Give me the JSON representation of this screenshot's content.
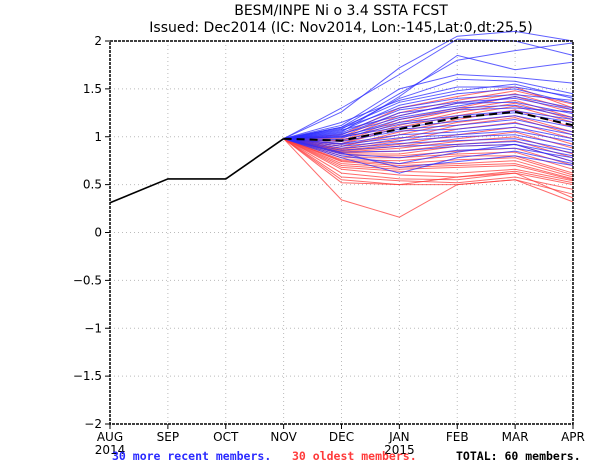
{
  "chart_data": {
    "type": "line",
    "title": "BESM/INPE Ni o 3.4 SSTA FCST",
    "subtitle": "Issued: Dec2014 (IC: Nov2014, Lon:-145,Lat:0,dt:25,5)",
    "xlabel": "",
    "ylabel": "",
    "x_ticks": [
      "AUG",
      "SEP",
      "OCT",
      "NOV",
      "DEC",
      "JAN",
      "FEB",
      "MAR",
      "APR"
    ],
    "x_year_labels": [
      {
        "index": 0,
        "label": "2014"
      },
      {
        "index": 5,
        "label": "2015"
      }
    ],
    "y_ticks": [
      "2",
      "1.5",
      "1",
      "0.5",
      "0",
      "−0.5",
      "−1",
      "−1.5",
      "−2"
    ],
    "y_tick_values": [
      2,
      1.5,
      1,
      0.5,
      0,
      -0.5,
      -1,
      -1.5,
      -2
    ],
    "ylim": [
      -2,
      2
    ],
    "grid": true,
    "observed": {
      "name": "observed",
      "color": "#000000",
      "x_index": [
        0,
        1,
        2,
        3
      ],
      "values": [
        0.31,
        0.56,
        0.56,
        0.98
      ]
    },
    "ensemble_mean": {
      "name": "ensemble mean",
      "color": "#000000",
      "style": "dashed",
      "x_index": [
        3,
        4,
        5,
        6,
        7,
        8
      ],
      "values": [
        0.98,
        0.96,
        1.08,
        1.2,
        1.26,
        1.12
      ]
    },
    "series_groups": [
      {
        "name": "30 more recent members",
        "color": "#2b2bff",
        "x_index": [
          3,
          4,
          5,
          6,
          7,
          8
        ],
        "members": [
          [
            0.98,
            1.26,
            1.72,
            2.05,
            2.1,
            2.0
          ],
          [
            0.98,
            1.3,
            1.65,
            2.02,
            2.0,
            1.85
          ],
          [
            0.98,
            1.1,
            1.45,
            1.8,
            1.9,
            1.98
          ],
          [
            0.98,
            1.05,
            1.42,
            1.85,
            1.7,
            1.78
          ],
          [
            0.98,
            1.12,
            1.5,
            1.65,
            1.62,
            1.56
          ],
          [
            0.98,
            1.08,
            1.4,
            1.6,
            1.58,
            1.45
          ],
          [
            0.98,
            1.15,
            1.38,
            1.52,
            1.52,
            1.42
          ],
          [
            0.98,
            1.1,
            1.36,
            1.48,
            1.55,
            1.4
          ],
          [
            0.98,
            1.06,
            1.33,
            1.45,
            1.5,
            1.35
          ],
          [
            0.98,
            1.09,
            1.3,
            1.4,
            1.44,
            1.38
          ],
          [
            0.98,
            1.04,
            1.28,
            1.36,
            1.4,
            1.28
          ],
          [
            0.98,
            1.02,
            1.25,
            1.32,
            1.42,
            1.3
          ],
          [
            0.98,
            1.07,
            1.22,
            1.35,
            1.36,
            1.24
          ],
          [
            0.98,
            1.03,
            1.2,
            1.3,
            1.33,
            1.2
          ],
          [
            0.98,
            1.0,
            1.18,
            1.28,
            1.3,
            1.26
          ],
          [
            0.98,
            1.01,
            1.15,
            1.22,
            1.27,
            1.18
          ],
          [
            0.98,
            0.99,
            1.13,
            1.2,
            1.25,
            1.15
          ],
          [
            0.98,
            1.0,
            1.1,
            1.16,
            1.22,
            1.1
          ],
          [
            0.98,
            0.97,
            1.08,
            1.12,
            1.18,
            1.05
          ],
          [
            0.98,
            0.95,
            1.06,
            1.08,
            1.14,
            1.02
          ],
          [
            0.98,
            0.93,
            1.02,
            1.05,
            1.1,
            0.98
          ],
          [
            0.98,
            0.92,
            0.99,
            1.02,
            1.06,
            0.95
          ],
          [
            0.98,
            0.9,
            0.96,
            1.0,
            1.02,
            0.9
          ],
          [
            0.98,
            0.88,
            0.93,
            0.96,
            0.98,
            0.86
          ],
          [
            0.98,
            0.86,
            0.9,
            0.92,
            0.95,
            0.83
          ],
          [
            0.98,
            0.84,
            0.85,
            0.9,
            0.92,
            0.8
          ],
          [
            0.98,
            0.82,
            0.78,
            0.86,
            0.88,
            0.78
          ],
          [
            0.98,
            0.8,
            0.72,
            0.84,
            0.92,
            0.74
          ],
          [
            0.98,
            0.78,
            0.62,
            0.78,
            0.85,
            0.72
          ],
          [
            0.98,
            0.83,
            0.68,
            0.74,
            0.8,
            0.7
          ]
        ]
      },
      {
        "name": "30 oldest members",
        "color": "#ff3b3b",
        "x_index": [
          3,
          4,
          5,
          6,
          7,
          8
        ],
        "members": [
          [
            0.98,
            1.02,
            1.3,
            1.42,
            1.52,
            1.3
          ],
          [
            0.98,
            1.0,
            1.25,
            1.38,
            1.48,
            1.34
          ],
          [
            0.98,
            0.98,
            1.22,
            1.35,
            1.45,
            1.28
          ],
          [
            0.98,
            0.96,
            1.18,
            1.3,
            1.42,
            1.25
          ],
          [
            0.98,
            0.95,
            1.15,
            1.28,
            1.38,
            1.2
          ],
          [
            0.98,
            0.93,
            1.12,
            1.25,
            1.35,
            1.18
          ],
          [
            0.98,
            0.92,
            1.1,
            1.22,
            1.32,
            1.15
          ],
          [
            0.98,
            0.9,
            1.05,
            1.18,
            1.28,
            1.1
          ],
          [
            0.98,
            0.9,
            1.02,
            1.15,
            1.22,
            1.05
          ],
          [
            0.98,
            0.88,
            0.98,
            1.12,
            1.2,
            1.02
          ],
          [
            0.98,
            0.87,
            0.95,
            1.08,
            1.15,
            0.98
          ],
          [
            0.98,
            0.86,
            0.92,
            1.02,
            1.1,
            0.92
          ],
          [
            0.98,
            0.85,
            0.9,
            0.98,
            1.05,
            0.88
          ],
          [
            0.98,
            0.84,
            0.88,
            0.95,
            1.0,
            0.82
          ],
          [
            0.98,
            0.83,
            0.85,
            0.92,
            0.96,
            0.78
          ],
          [
            0.98,
            0.82,
            0.82,
            0.9,
            0.92,
            0.74
          ],
          [
            0.98,
            0.8,
            0.8,
            0.85,
            0.88,
            0.7
          ],
          [
            0.98,
            0.78,
            0.78,
            0.82,
            0.84,
            0.66
          ],
          [
            0.98,
            0.76,
            0.75,
            0.8,
            0.8,
            0.62
          ],
          [
            0.98,
            0.75,
            0.72,
            0.76,
            0.78,
            0.6
          ],
          [
            0.98,
            0.74,
            0.7,
            0.72,
            0.75,
            0.58
          ],
          [
            0.98,
            0.72,
            0.68,
            0.7,
            0.72,
            0.56
          ],
          [
            0.98,
            0.7,
            0.66,
            0.68,
            0.7,
            0.55
          ],
          [
            0.98,
            0.68,
            0.64,
            0.62,
            0.66,
            0.54
          ],
          [
            0.98,
            0.66,
            0.6,
            0.58,
            0.64,
            0.52
          ],
          [
            0.98,
            0.62,
            0.56,
            0.55,
            0.62,
            0.5
          ],
          [
            0.98,
            0.58,
            0.54,
            0.52,
            0.58,
            0.45
          ],
          [
            0.98,
            0.55,
            0.5,
            0.5,
            0.55,
            0.4
          ],
          [
            0.98,
            0.52,
            0.5,
            0.58,
            0.62,
            0.36
          ],
          [
            0.98,
            0.34,
            0.16,
            0.5,
            0.55,
            0.32
          ]
        ]
      }
    ],
    "legend": [
      {
        "label": "30 more recent members.",
        "color": "#2b2bff"
      },
      {
        "label": "30 oldest members.",
        "color": "#ff3b3b"
      },
      {
        "label": "TOTAL: 60 members.",
        "color": "#000000"
      }
    ],
    "legend_placement": "bottom"
  }
}
